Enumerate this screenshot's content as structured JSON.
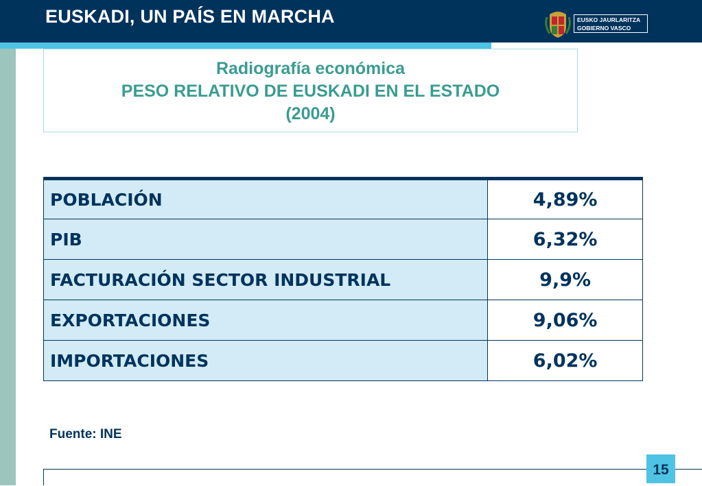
{
  "header": {
    "title": "EUSKADI, UN PAÍS EN MARCHA",
    "logo_line1": "EUSKO JAURLARITZA",
    "logo_line2": "GOBIERNO VASCO"
  },
  "title_box": {
    "line1": "Radiografía económica",
    "line2": "PESO RELATIVO DE EUSKADI EN EL ESTADO",
    "line3": "(2004)"
  },
  "table": {
    "rows": [
      {
        "label": "POBLACIÓN",
        "value": "4,89%"
      },
      {
        "label": "PIB",
        "value": "6,32%"
      },
      {
        "label": "FACTURACIÓN SECTOR INDUSTRIAL",
        "value": "9,9%"
      },
      {
        "label": "EXPORTACIONES",
        "value": "9,06%"
      },
      {
        "label": "IMPORTACIONES",
        "value": "6,02%"
      }
    ]
  },
  "source": "Fuente: INE",
  "page_number": "15",
  "colors": {
    "navy": "#00335c",
    "cyan": "#4fc3e3",
    "teal_text": "#3a9c91",
    "side_bar": "#9cc6bd",
    "label_cell": "#d2ebf6"
  }
}
